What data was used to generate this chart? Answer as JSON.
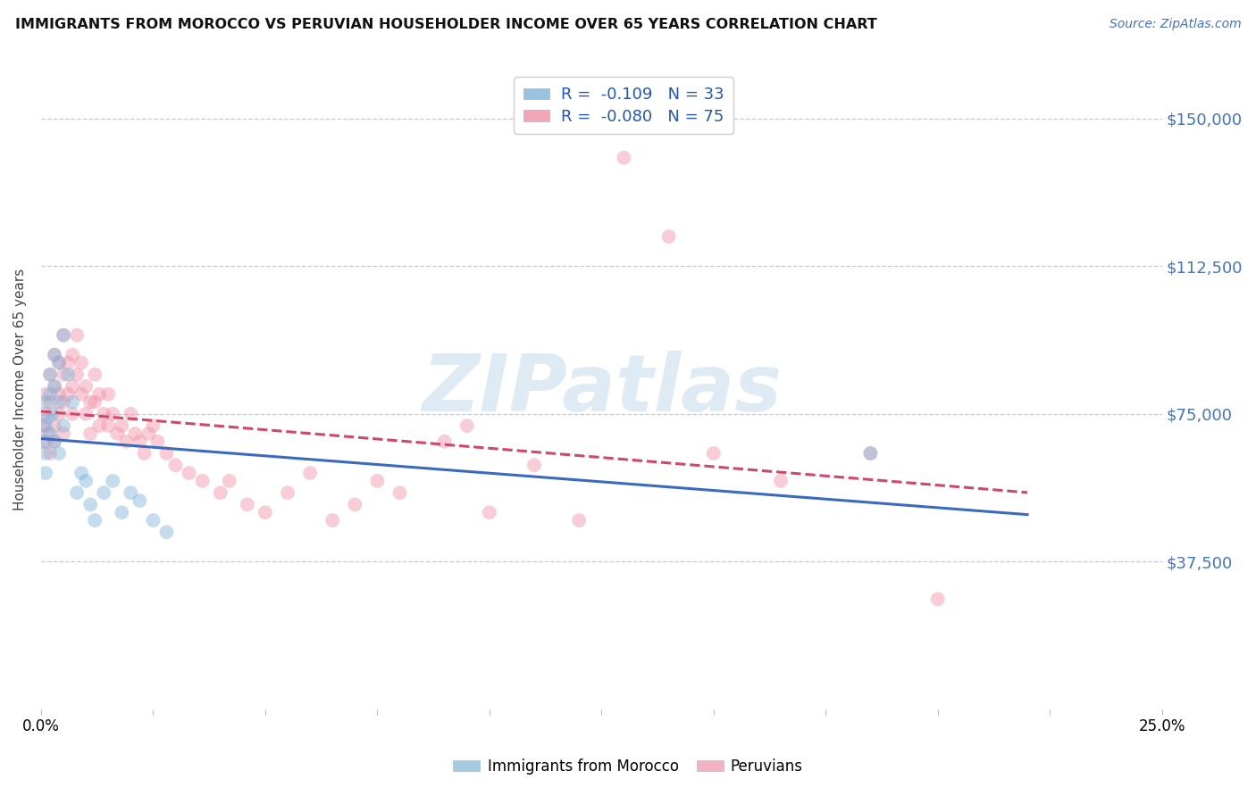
{
  "title": "IMMIGRANTS FROM MOROCCO VS PERUVIAN HOUSEHOLDER INCOME OVER 65 YEARS CORRELATION CHART",
  "source": "Source: ZipAtlas.com",
  "ylabel": "Householder Income Over 65 years",
  "ytick_labels": [
    "$37,500",
    "$75,000",
    "$112,500",
    "$150,000"
  ],
  "ytick_values": [
    37500,
    75000,
    112500,
    150000
  ],
  "ylim_max": 162500,
  "xlim": [
    0.0,
    0.25
  ],
  "legend_bottom": [
    "Immigrants from Morocco",
    "Peruvians"
  ],
  "morocco_color": "#7eb3d8",
  "peruvian_color": "#f090a8",
  "morocco_line_color": "#3a6abf",
  "peruvian_line_color": "#d04868",
  "background_color": "#ffffff",
  "grid_color": "#c8c8d0",
  "marker_size": 130,
  "marker_alpha": 0.45,
  "line_width": 2.2,
  "morocco_x": [
    0.0005,
    0.001,
    0.001,
    0.001,
    0.001,
    0.0015,
    0.002,
    0.002,
    0.002,
    0.0025,
    0.003,
    0.003,
    0.003,
    0.004,
    0.004,
    0.004,
    0.005,
    0.005,
    0.006,
    0.007,
    0.008,
    0.009,
    0.01,
    0.011,
    0.012,
    0.014,
    0.016,
    0.018,
    0.02,
    0.022,
    0.025,
    0.028,
    0.185
  ],
  "morocco_y": [
    68000,
    72000,
    65000,
    78000,
    60000,
    74000,
    80000,
    70000,
    85000,
    75000,
    90000,
    82000,
    68000,
    88000,
    78000,
    65000,
    95000,
    72000,
    85000,
    78000,
    55000,
    60000,
    58000,
    52000,
    48000,
    55000,
    58000,
    50000,
    55000,
    53000,
    48000,
    45000,
    65000
  ],
  "peruvian_x": [
    0.0005,
    0.001,
    0.001,
    0.001,
    0.0015,
    0.002,
    0.002,
    0.002,
    0.003,
    0.003,
    0.003,
    0.003,
    0.004,
    0.004,
    0.004,
    0.005,
    0.005,
    0.005,
    0.005,
    0.006,
    0.006,
    0.007,
    0.007,
    0.007,
    0.008,
    0.008,
    0.009,
    0.009,
    0.01,
    0.01,
    0.011,
    0.011,
    0.012,
    0.012,
    0.013,
    0.013,
    0.014,
    0.015,
    0.015,
    0.016,
    0.017,
    0.018,
    0.019,
    0.02,
    0.021,
    0.022,
    0.023,
    0.024,
    0.025,
    0.026,
    0.028,
    0.03,
    0.033,
    0.036,
    0.04,
    0.042,
    0.046,
    0.05,
    0.055,
    0.06,
    0.065,
    0.07,
    0.075,
    0.08,
    0.09,
    0.095,
    0.1,
    0.11,
    0.12,
    0.13,
    0.14,
    0.15,
    0.165,
    0.185,
    0.2
  ],
  "peruvian_y": [
    72000,
    75000,
    68000,
    80000,
    70000,
    85000,
    78000,
    65000,
    90000,
    82000,
    72000,
    68000,
    88000,
    80000,
    75000,
    95000,
    85000,
    78000,
    70000,
    88000,
    80000,
    90000,
    82000,
    75000,
    95000,
    85000,
    88000,
    80000,
    82000,
    75000,
    78000,
    70000,
    85000,
    78000,
    80000,
    72000,
    75000,
    80000,
    72000,
    75000,
    70000,
    72000,
    68000,
    75000,
    70000,
    68000,
    65000,
    70000,
    72000,
    68000,
    65000,
    62000,
    60000,
    58000,
    55000,
    58000,
    52000,
    50000,
    55000,
    60000,
    48000,
    52000,
    58000,
    55000,
    68000,
    72000,
    50000,
    62000,
    48000,
    140000,
    120000,
    65000,
    58000,
    65000,
    28000
  ]
}
